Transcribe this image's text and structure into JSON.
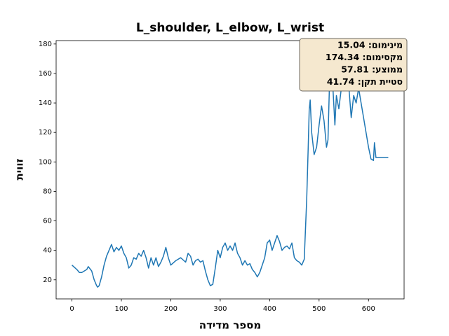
{
  "chart_data": {
    "type": "line",
    "title": "L_shoulder, L_elbow, L_wrist",
    "xlabel": "מספר מדידה",
    "ylabel": "זווית",
    "x": [
      0,
      10,
      15,
      20,
      25,
      30,
      33,
      40,
      45,
      50,
      52,
      55,
      60,
      65,
      70,
      75,
      80,
      85,
      90,
      95,
      100,
      105,
      110,
      115,
      120,
      125,
      130,
      135,
      140,
      145,
      150,
      155,
      160,
      165,
      170,
      175,
      180,
      185,
      190,
      195,
      200,
      210,
      220,
      230,
      235,
      240,
      245,
      250,
      255,
      260,
      265,
      270,
      275,
      280,
      285,
      290,
      295,
      300,
      305,
      310,
      315,
      320,
      325,
      330,
      335,
      340,
      345,
      350,
      355,
      360,
      365,
      370,
      375,
      380,
      385,
      390,
      395,
      400,
      405,
      410,
      415,
      420,
      425,
      430,
      435,
      440,
      445,
      450,
      455,
      460,
      465,
      470,
      475,
      478,
      480,
      482,
      485,
      490,
      495,
      500,
      505,
      510,
      515,
      518,
      522,
      525,
      528,
      532,
      535,
      540,
      545,
      550,
      555,
      560,
      565,
      570,
      575,
      580,
      585,
      590,
      595,
      600,
      605,
      610,
      612,
      615,
      640
    ],
    "series": [
      {
        "name": "L_shoulder, L_elbow, L_wrist",
        "color": "#1f77b4",
        "values": [
          30,
          27,
          25,
          25,
          26,
          27,
          29,
          26,
          20,
          16,
          15.04,
          16,
          22,
          30,
          36,
          40,
          44,
          39,
          42,
          40,
          43,
          38,
          35,
          28,
          30,
          35,
          34,
          38,
          36,
          40,
          35,
          28,
          35,
          30,
          35,
          29,
          32,
          36,
          42,
          35,
          30,
          33,
          35,
          32,
          38,
          36,
          30,
          33,
          34,
          32,
          33,
          26,
          20,
          16,
          17,
          28,
          40,
          35,
          42,
          45,
          40,
          43,
          40,
          45,
          38,
          35,
          30,
          33,
          30,
          31,
          27,
          25,
          22,
          25,
          30,
          35,
          45,
          47,
          40,
          45,
          50,
          46,
          40,
          42,
          43,
          41,
          45,
          35,
          33,
          32,
          30,
          34,
          75,
          110,
          135,
          142,
          120,
          105,
          110,
          125,
          138,
          128,
          110,
          115,
          165,
          174.34,
          150,
          125,
          145,
          136,
          150,
          160,
          165,
          152,
          130,
          145,
          140,
          150,
          140,
          130,
          120,
          110,
          102,
          101,
          113,
          103,
          103
        ]
      }
    ],
    "xlim": [
      -32,
      672
    ],
    "ylim": [
      7.07,
      182.3
    ],
    "xticks": [
      0,
      100,
      200,
      300,
      400,
      500,
      600
    ],
    "yticks": [
      20,
      40,
      60,
      80,
      100,
      120,
      140,
      160,
      180
    ],
    "grid": false,
    "annotation": [
      "מינימום: 15.04",
      "מקסימום: 174.34",
      "ממוצע: 57.81",
      "סטיית תקן: 41.74"
    ]
  }
}
